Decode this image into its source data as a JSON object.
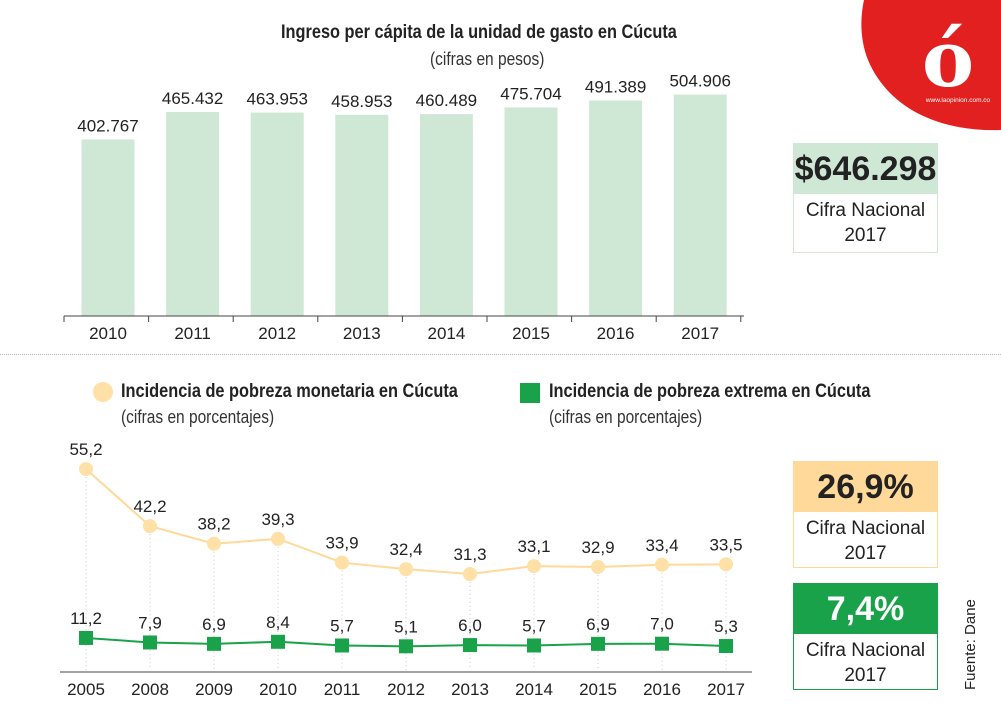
{
  "logo": {
    "letter": "ó",
    "url": "www.laopinion.com.co"
  },
  "source": "Fuente: Dane",
  "colors": {
    "bar": "#cfe8d6",
    "poverty_line": "#ffd999",
    "poverty_marker": "#ffe0a6",
    "extreme": "#1aa24a",
    "red": "#e1201f"
  },
  "chart_data": [
    {
      "type": "bar",
      "title": "Ingreso per cápita de la unidad de gasto en Cúcuta",
      "subtitle": "(cifras en pesos)",
      "categories": [
        "2010",
        "2011",
        "2012",
        "2013",
        "2014",
        "2015",
        "2016",
        "2017"
      ],
      "values": [
        402767,
        465432,
        463953,
        458953,
        460489,
        475704,
        491389,
        504906
      ],
      "value_labels": [
        "402.767",
        "465.432",
        "463.953",
        "458.953",
        "460.489",
        "475.704",
        "491.389",
        "504.906"
      ],
      "ylim": [
        0,
        520000
      ],
      "grid": false
    },
    {
      "type": "line",
      "categories": [
        "2005",
        "2008",
        "2009",
        "2010",
        "2011",
        "2012",
        "2013",
        "2014",
        "2015",
        "2016",
        "2017"
      ],
      "series": [
        {
          "name": "Incidencia de pobreza monetaria en Cúcuta",
          "subtitle": "(cifras en porcentajes)",
          "values": [
            55.2,
            42.2,
            38.2,
            39.3,
            33.9,
            32.4,
            31.3,
            33.1,
            32.9,
            33.4,
            33.5
          ],
          "labels": [
            "55,2",
            "42,2",
            "38,2",
            "39,3",
            "33,9",
            "32,4",
            "31,3",
            "33,1",
            "32,9",
            "33,4",
            "33,5"
          ]
        },
        {
          "name": "Incidencia de pobreza extrema en Cúcuta",
          "subtitle": "(cifras en porcentajes)",
          "values": [
            11.2,
            7.9,
            6.9,
            8.4,
            5.7,
            5.1,
            6.0,
            5.7,
            6.9,
            7.0,
            5.3
          ],
          "labels": [
            "11,2",
            "7,9",
            "6,9",
            "8,4",
            "5,7",
            "5,1",
            "6,0",
            "5,7",
            "6,9",
            "7,0",
            "5,3"
          ]
        }
      ],
      "grid": false
    }
  ],
  "national": {
    "income": {
      "value": "$646.298",
      "caption1": "Cifra Nacional",
      "caption2": "2017"
    },
    "poverty": {
      "value": "26,9%",
      "caption1": "Cifra Nacional",
      "caption2": "2017"
    },
    "extreme": {
      "value": "7,4%",
      "caption1": "Cifra Nacional",
      "caption2": "2017"
    }
  }
}
